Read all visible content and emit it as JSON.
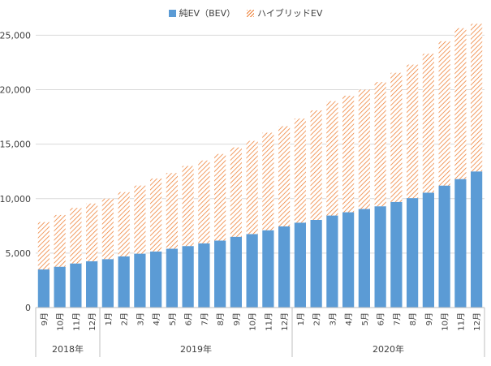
{
  "chart_data": {
    "type": "bar",
    "stacked": true,
    "title": "",
    "xlabel": "",
    "ylabel": "",
    "ylim": [
      0,
      26000
    ],
    "yticks": [
      0,
      5000,
      10000,
      15000,
      20000,
      25000
    ],
    "ytick_labels": [
      "0",
      "5,000",
      "10,000",
      "15,000",
      "20,000",
      "25,000"
    ],
    "grid": true,
    "legend_position": "top-center",
    "categories": [
      "9月",
      "10月",
      "11月",
      "12月",
      "1月",
      "2月",
      "3月",
      "4月",
      "5月",
      "6月",
      "7月",
      "8月",
      "9月",
      "10月",
      "11月",
      "12月",
      "1月",
      "2月",
      "3月",
      "4月",
      "5月",
      "6月",
      "7月",
      "8月",
      "9月",
      "10月",
      "11月",
      "12月"
    ],
    "year_groups": [
      {
        "label": "2018年",
        "count": 4
      },
      {
        "label": "2019年",
        "count": 12
      },
      {
        "label": "2020年",
        "count": 12
      }
    ],
    "series": [
      {
        "name": "純EV（BEV）",
        "color": "#5b9bd5",
        "pattern": "solid",
        "values": [
          3500,
          3750,
          4050,
          4250,
          4450,
          4700,
          4950,
          5150,
          5400,
          5650,
          5900,
          6150,
          6500,
          6750,
          7100,
          7450,
          7800,
          8050,
          8450,
          8750,
          9050,
          9300,
          9700,
          10050,
          10550,
          11200,
          11800,
          12500
        ]
      },
      {
        "name": "ハイブリッドEV",
        "color": "#ed7d31",
        "pattern": "hatched",
        "values": [
          4350,
          4750,
          5100,
          5300,
          5550,
          5900,
          6250,
          6700,
          6950,
          7350,
          7600,
          7950,
          8200,
          8550,
          8950,
          9200,
          9550,
          10050,
          10500,
          10700,
          10950,
          11400,
          11850,
          12250,
          12750,
          13250,
          13850,
          13550
        ]
      }
    ]
  }
}
